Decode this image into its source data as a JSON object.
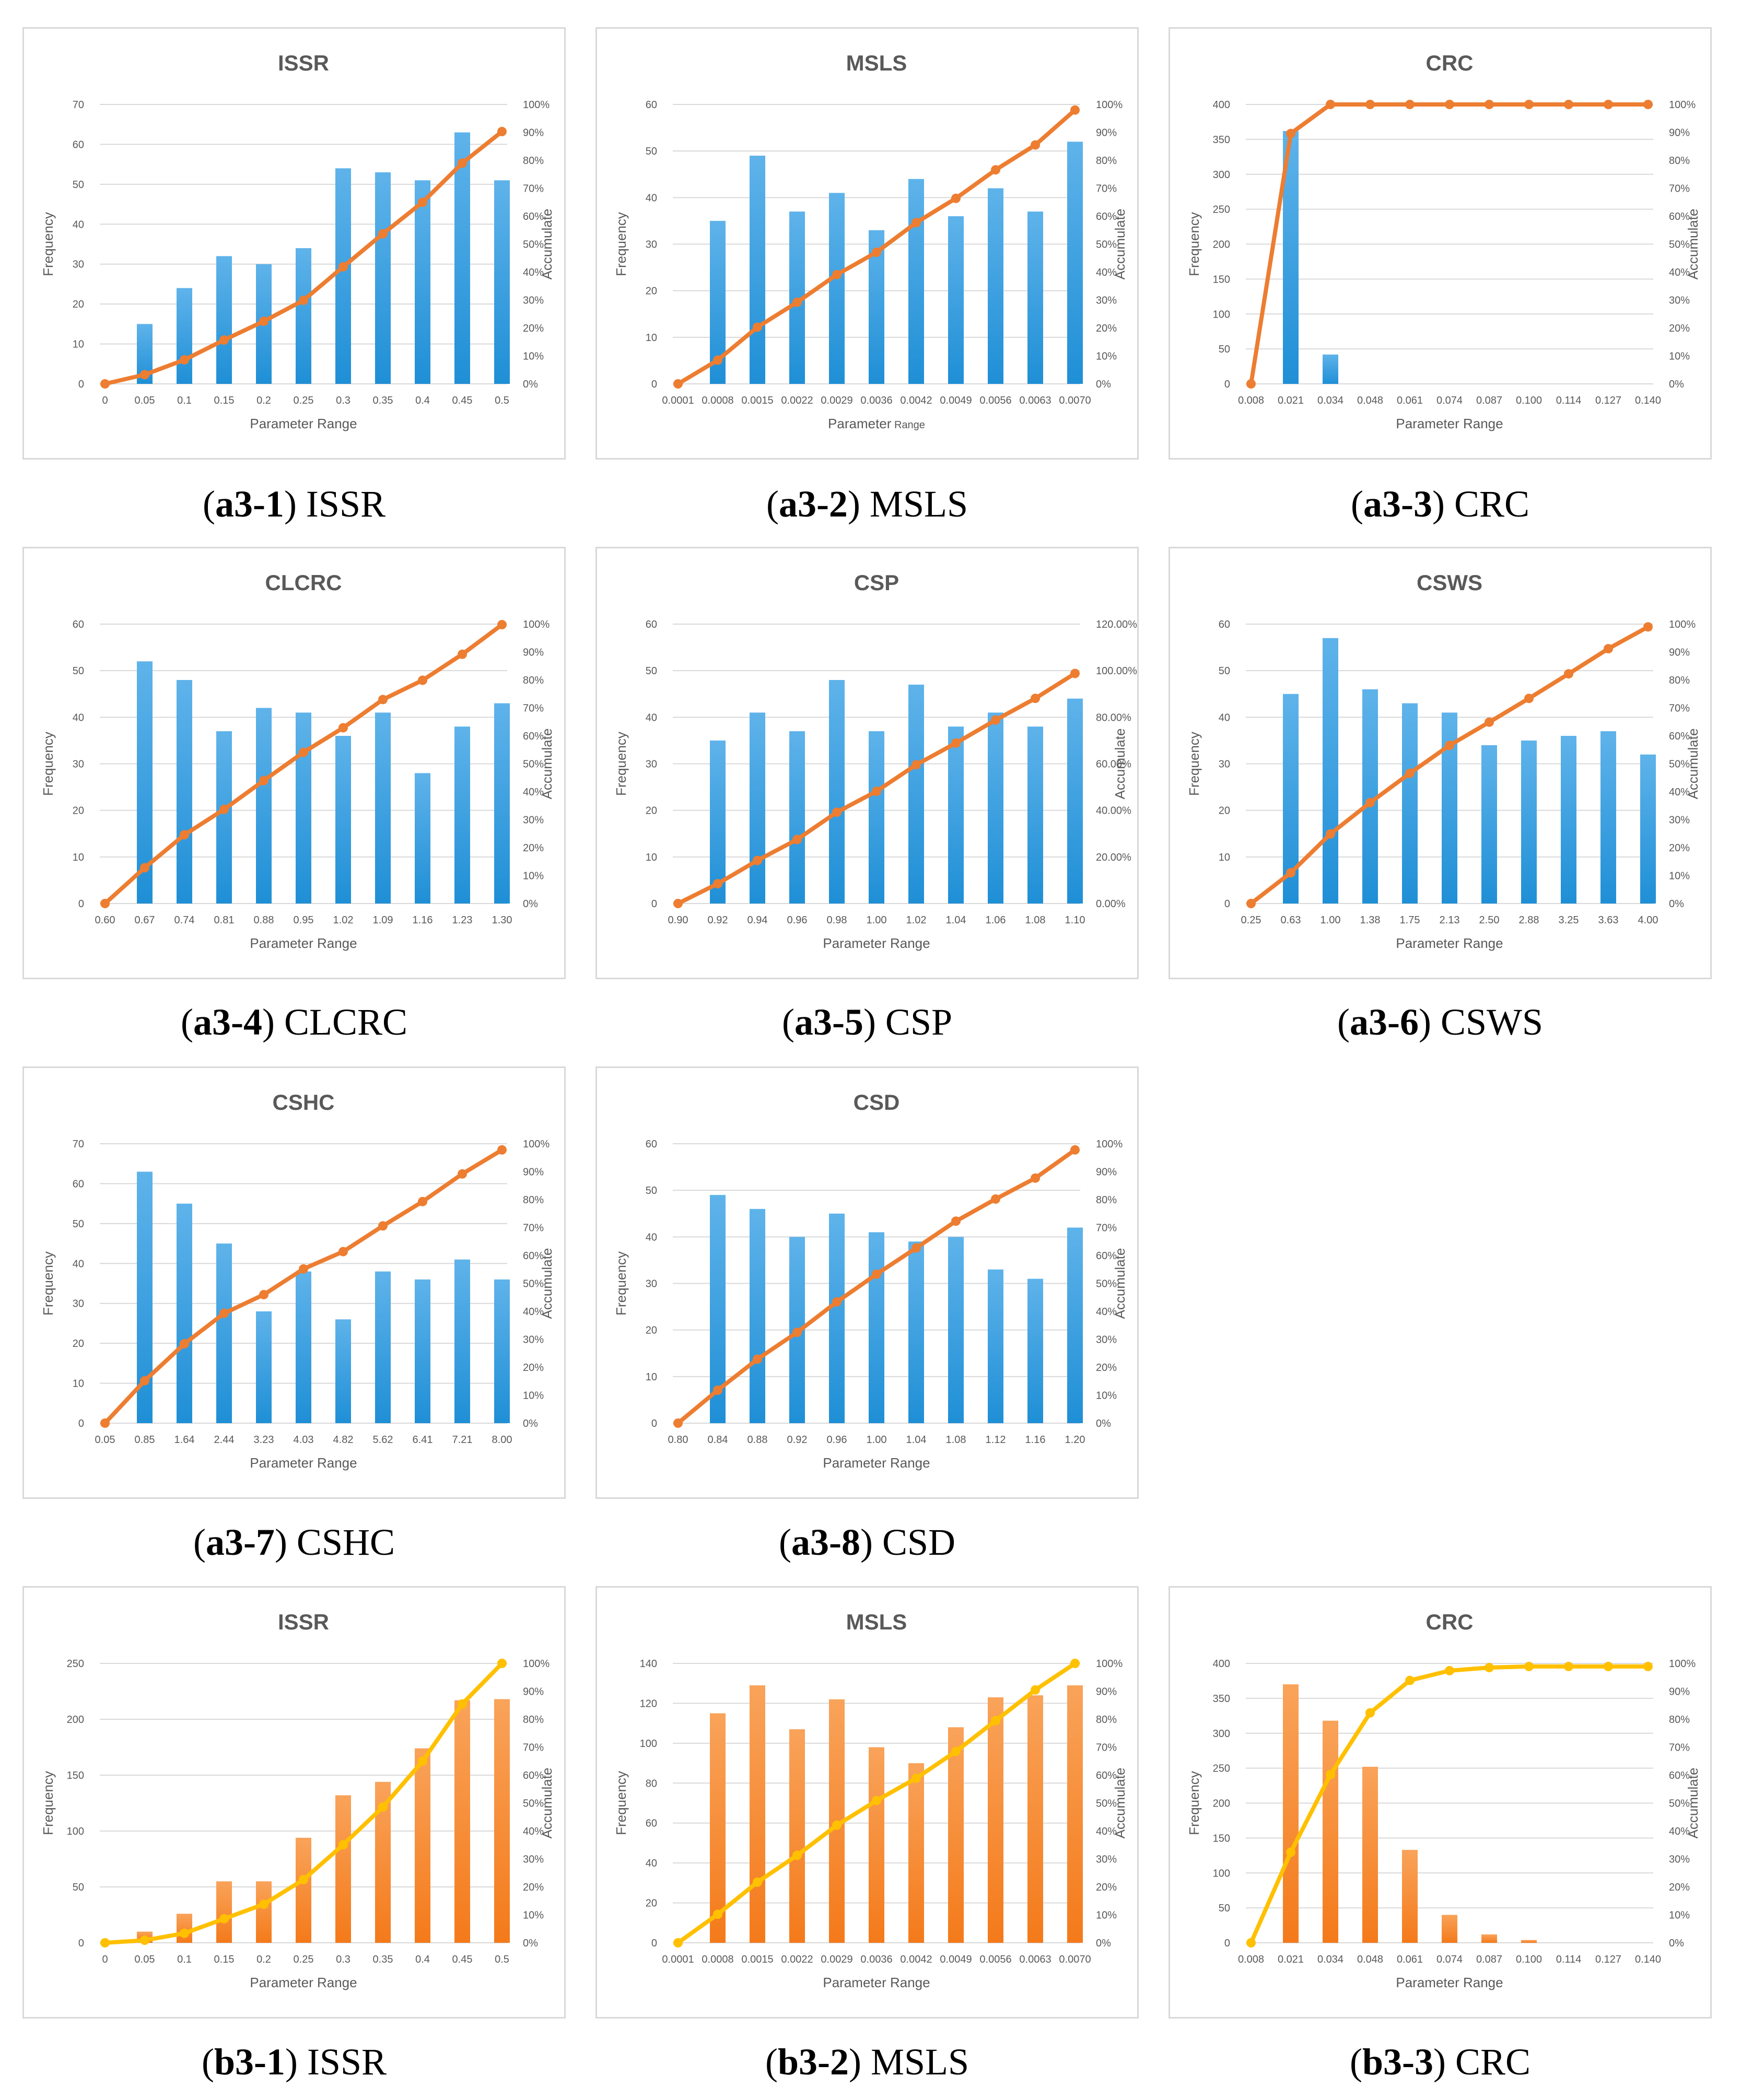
{
  "captions": [
    {
      "label": "a3-1",
      "name": "ISSR"
    },
    {
      "label": "a3-2",
      "name": "MSLS"
    },
    {
      "label": "a3-3",
      "name": "CRC"
    },
    {
      "label": "a3-4",
      "name": "CLCRC"
    },
    {
      "label": "a3-5",
      "name": "CSP"
    },
    {
      "label": "a3-6",
      "name": "CSWS"
    },
    {
      "label": "a3-7",
      "name": "CSHC"
    },
    {
      "label": "a3-8",
      "name": "CSD"
    },
    {
      "label": "b3-1",
      "name": "ISSR"
    },
    {
      "label": "b3-2",
      "name": "MSLS"
    },
    {
      "label": "b3-3",
      "name": "CRC"
    }
  ],
  "colors": {
    "blue_bar": "#1f8fd6",
    "blue_bar_top": "#5fb3ea",
    "orange_line": "#ed7d31",
    "orange_bar": "#f47a1a",
    "orange_bar_top": "#f9a35a",
    "yellow_line": "#ffc000",
    "gridline": "#d9d9d9",
    "axis_text": "#595959"
  },
  "chart_data": [
    {
      "type": "bar+line",
      "title": "ISSR",
      "xlabel": "Parameter Range",
      "ylabel": "Frequency",
      "y2label": "Accumulate",
      "categories": [
        "0",
        "0.05",
        "0.1",
        "0.15",
        "0.2",
        "0.25",
        "0.3",
        "0.35",
        "0.4",
        "0.45",
        "0.5"
      ],
      "series": [
        {
          "name": "Frequency",
          "kind": "bar",
          "values": [
            0,
            15,
            24,
            32,
            30,
            34,
            54,
            53,
            51,
            63,
            51
          ]
        },
        {
          "name": "Accumulate",
          "kind": "line",
          "values": [
            0,
            3.3,
            8.6,
            15.7,
            22.4,
            29.9,
            41.9,
            53.7,
            65.0,
            79.0,
            90.3
          ]
        }
      ],
      "ylim": [
        0,
        70
      ],
      "yticks": [
        "0",
        "10",
        "20",
        "30",
        "40",
        "50",
        "60",
        "70"
      ],
      "y2ticks": [
        "0%",
        "10%",
        "20%",
        "30%",
        "40%",
        "50%",
        "60%",
        "70%",
        "80%",
        "90%",
        "100%"
      ],
      "scheme": "blue"
    },
    {
      "type": "bar+line",
      "title": "MSLS",
      "xlabel": "Parameter",
      "xlabel_small": "Range",
      "ylabel": "Frequency",
      "y2label": "Accumulate",
      "categories": [
        "0.0001",
        "0.0008",
        "0.0015",
        "0.0022",
        "0.0029",
        "0.0036",
        "0.0042",
        "0.0049",
        "0.0056",
        "0.0063",
        "0.0070"
      ],
      "series": [
        {
          "name": "Frequency",
          "kind": "bar",
          "values": [
            0,
            35,
            49,
            37,
            41,
            33,
            44,
            36,
            42,
            37,
            52
          ]
        },
        {
          "name": "Accumulate",
          "kind": "line",
          "values": [
            0,
            8.5,
            20.3,
            29.2,
            39.1,
            47.1,
            57.7,
            66.4,
            76.6,
            85.5,
            98.0
          ]
        }
      ],
      "ylim": [
        0,
        60
      ],
      "yticks": [
        "0",
        "10",
        "20",
        "30",
        "40",
        "50",
        "60"
      ],
      "y2ticks": [
        "0%",
        "10%",
        "20%",
        "30%",
        "40%",
        "50%",
        "60%",
        "70%",
        "80%",
        "90%",
        "100%"
      ],
      "scheme": "blue"
    },
    {
      "type": "bar+line",
      "title": "CRC",
      "xlabel": "Parameter Range",
      "ylabel": "Frequency",
      "y2label": "Accumulate",
      "categories": [
        "0.008",
        "0.021",
        "0.034",
        "0.048",
        "0.061",
        "0.074",
        "0.087",
        "0.100",
        "0.114",
        "0.127",
        "0.140"
      ],
      "series": [
        {
          "name": "Frequency",
          "kind": "bar",
          "values": [
            0,
            362,
            42,
            0,
            0,
            0,
            0,
            0,
            0,
            0,
            0
          ]
        },
        {
          "name": "Accumulate",
          "kind": "line",
          "values": [
            0,
            89.6,
            100,
            100,
            100,
            100,
            100,
            100,
            100,
            100,
            100
          ]
        }
      ],
      "ylim": [
        0,
        400
      ],
      "yticks": [
        "0",
        "50",
        "100",
        "150",
        "200",
        "250",
        "300",
        "350",
        "400"
      ],
      "y2ticks": [
        "0%",
        "10%",
        "20%",
        "30%",
        "40%",
        "50%",
        "60%",
        "70%",
        "80%",
        "90%",
        "100%"
      ],
      "scheme": "blue"
    },
    {
      "type": "bar+line",
      "title": "CLCRC",
      "xlabel": "Parameter Range",
      "ylabel": "Frequency",
      "y2label": "Accumulate",
      "categories": [
        "0.60",
        "0.67",
        "0.74",
        "0.81",
        "0.88",
        "0.95",
        "1.02",
        "1.09",
        "1.16",
        "1.23",
        "1.30"
      ],
      "series": [
        {
          "name": "Frequency",
          "kind": "bar",
          "values": [
            0,
            52,
            48,
            37,
            42,
            41,
            36,
            41,
            28,
            38,
            43
          ]
        },
        {
          "name": "Accumulate",
          "kind": "line",
          "values": [
            0,
            12.8,
            24.6,
            33.7,
            44.0,
            54.1,
            62.9,
            73.0,
            79.9,
            89.2,
            99.8
          ]
        }
      ],
      "ylim": [
        0,
        60
      ],
      "yticks": [
        "0",
        "10",
        "20",
        "30",
        "40",
        "50",
        "60"
      ],
      "y2ticks": [
        "0%",
        "10%",
        "20%",
        "30%",
        "40%",
        "50%",
        "60%",
        "70%",
        "80%",
        "90%",
        "100%"
      ],
      "scheme": "blue"
    },
    {
      "type": "bar+line",
      "title": "CSP",
      "xlabel": "Parameter Range",
      "ylabel": "Frequency",
      "y2label": "Accumulate",
      "categories": [
        "0.90",
        "0.92",
        "0.94",
        "0.96",
        "0.98",
        "1.00",
        "1.02",
        "1.04",
        "1.06",
        "1.08",
        "1.10"
      ],
      "series": [
        {
          "name": "Frequency",
          "kind": "bar",
          "values": [
            0,
            35,
            41,
            37,
            48,
            37,
            47,
            38,
            41,
            38,
            44
          ]
        },
        {
          "name": "Accumulate",
          "kind": "line",
          "values": [
            0,
            8.5,
            18.5,
            27.5,
            39.2,
            48.2,
            59.6,
            68.9,
            78.8,
            88.1,
            98.8
          ]
        }
      ],
      "ylim": [
        0,
        60
      ],
      "yticks": [
        "0",
        "10",
        "20",
        "30",
        "40",
        "50",
        "60"
      ],
      "y2ticks": [
        "0.00%",
        "20.00%",
        "40.00%",
        "60.00%",
        "80.00%",
        "100.00%",
        "120.00%"
      ],
      "y2max": 120,
      "scheme": "blue"
    },
    {
      "type": "bar+line",
      "title": "CSWS",
      "xlabel": "Parameter Range",
      "ylabel": "Frequency",
      "y2label": "Accumulate",
      "categories": [
        "0.25",
        "0.63",
        "1.00",
        "1.38",
        "1.75",
        "2.13",
        "2.50",
        "2.88",
        "3.25",
        "3.63",
        "4.00"
      ],
      "series": [
        {
          "name": "Frequency",
          "kind": "bar",
          "values": [
            0,
            45,
            57,
            46,
            43,
            41,
            34,
            35,
            36,
            37,
            32
          ]
        },
        {
          "name": "Accumulate",
          "kind": "line",
          "values": [
            0,
            11.0,
            24.9,
            36.1,
            46.6,
            56.6,
            64.9,
            73.4,
            82.2,
            91.2,
            99.0
          ]
        }
      ],
      "ylim": [
        0,
        60
      ],
      "yticks": [
        "0",
        "10",
        "20",
        "30",
        "40",
        "50",
        "60"
      ],
      "y2ticks": [
        "0%",
        "10%",
        "20%",
        "30%",
        "40%",
        "50%",
        "60%",
        "70%",
        "80%",
        "90%",
        "100%"
      ],
      "scheme": "blue"
    },
    {
      "type": "bar+line",
      "title": "CSHC",
      "xlabel": "Parameter Range",
      "ylabel": "Frequency",
      "y2label": "Accumulate",
      "categories": [
        "0.05",
        "0.85",
        "1.64",
        "2.44",
        "3.23",
        "4.03",
        "4.82",
        "5.62",
        "6.41",
        "7.21",
        "8.00"
      ],
      "series": [
        {
          "name": "Frequency",
          "kind": "bar",
          "values": [
            0,
            63,
            55,
            45,
            28,
            38,
            26,
            38,
            36,
            41,
            36
          ]
        },
        {
          "name": "Accumulate",
          "kind": "line",
          "values": [
            0,
            15.2,
            28.4,
            39.3,
            46.0,
            55.2,
            61.4,
            70.6,
            79.3,
            89.2,
            97.8
          ]
        }
      ],
      "ylim": [
        0,
        70
      ],
      "yticks": [
        "0",
        "10",
        "20",
        "30",
        "40",
        "50",
        "60",
        "70"
      ],
      "y2ticks": [
        "0%",
        "10%",
        "20%",
        "30%",
        "40%",
        "50%",
        "60%",
        "70%",
        "80%",
        "90%",
        "100%"
      ],
      "scheme": "blue"
    },
    {
      "type": "bar+line",
      "title": "CSD",
      "xlabel": "Parameter Range",
      "ylabel": "Frequency",
      "y2label": "Accumulate",
      "categories": [
        "0.80",
        "0.84",
        "0.88",
        "0.92",
        "0.96",
        "1.00",
        "1.04",
        "1.08",
        "1.12",
        "1.16",
        "1.20"
      ],
      "series": [
        {
          "name": "Frequency",
          "kind": "bar",
          "values": [
            0,
            49,
            46,
            40,
            45,
            41,
            39,
            40,
            33,
            31,
            42
          ]
        },
        {
          "name": "Accumulate",
          "kind": "line",
          "values": [
            0,
            11.8,
            22.9,
            32.5,
            43.4,
            53.3,
            62.7,
            72.3,
            80.2,
            87.7,
            97.8
          ]
        }
      ],
      "ylim": [
        0,
        60
      ],
      "yticks": [
        "0",
        "10",
        "20",
        "30",
        "40",
        "50",
        "60"
      ],
      "y2ticks": [
        "0%",
        "10%",
        "20%",
        "30%",
        "40%",
        "50%",
        "60%",
        "70%",
        "80%",
        "90%",
        "100%"
      ],
      "scheme": "blue"
    },
    {
      "type": "bar+line",
      "title": "ISSR",
      "xlabel": "Parameter Range",
      "ylabel": "Frequency",
      "y2label": "Accumulate",
      "categories": [
        "0",
        "0.05",
        "0.1",
        "0.15",
        "0.2",
        "0.25",
        "0.3",
        "0.35",
        "0.4",
        "0.45",
        "0.5"
      ],
      "series": [
        {
          "name": "Frequency",
          "kind": "bar",
          "values": [
            0,
            10,
            26,
            55,
            55,
            94,
            132,
            144,
            174,
            217,
            218
          ]
        },
        {
          "name": "Accumulate",
          "kind": "line",
          "values": [
            0,
            0.9,
            3.4,
            8.6,
            13.8,
            22.6,
            35.1,
            48.6,
            65.0,
            85.5,
            100
          ]
        }
      ],
      "ylim": [
        0,
        250
      ],
      "yticks": [
        "0",
        "50",
        "100",
        "150",
        "200",
        "250"
      ],
      "y2ticks": [
        "0%",
        "10%",
        "20%",
        "30%",
        "40%",
        "50%",
        "60%",
        "70%",
        "80%",
        "90%",
        "100%"
      ],
      "scheme": "orange"
    },
    {
      "type": "bar+line",
      "title": "MSLS",
      "xlabel": "Parameter Range",
      "ylabel": "Frequency",
      "y2label": "Accumulate",
      "categories": [
        "0.0001",
        "0.0008",
        "0.0015",
        "0.0022",
        "0.0029",
        "0.0036",
        "0.0042",
        "0.0049",
        "0.0056",
        "0.0063",
        "0.0070"
      ],
      "series": [
        {
          "name": "Frequency",
          "kind": "bar",
          "values": [
            0,
            115,
            129,
            107,
            122,
            98,
            90,
            108,
            123,
            124,
            129
          ]
        },
        {
          "name": "Accumulate",
          "kind": "line",
          "values": [
            0,
            10.2,
            21.7,
            31.3,
            42.1,
            50.9,
            58.9,
            68.5,
            79.5,
            90.5,
            100
          ]
        }
      ],
      "ylim": [
        0,
        140
      ],
      "yticks": [
        "0",
        "20",
        "40",
        "60",
        "80",
        "100",
        "120",
        "140"
      ],
      "y2ticks": [
        "0%",
        "10%",
        "20%",
        "30%",
        "40%",
        "50%",
        "60%",
        "70%",
        "80%",
        "90%",
        "100%"
      ],
      "scheme": "orange"
    },
    {
      "type": "bar+line",
      "title": "CRC",
      "xlabel": "Parameter Range",
      "ylabel": "Frequency",
      "y2label": "Accumulate",
      "categories": [
        "0.008",
        "0.021",
        "0.034",
        "0.048",
        "0.061",
        "0.074",
        "0.087",
        "0.100",
        "0.114",
        "0.127",
        "0.140"
      ],
      "series": [
        {
          "name": "Frequency",
          "kind": "bar",
          "values": [
            0,
            370,
            318,
            252,
            133,
            40,
            12,
            4,
            0,
            0,
            0
          ]
        },
        {
          "name": "Accumulate",
          "kind": "line",
          "values": [
            0,
            32.4,
            60.2,
            82.3,
            93.9,
            97.4,
            98.5,
            98.9,
            98.9,
            98.9,
            98.9
          ]
        }
      ],
      "ylim": [
        0,
        400
      ],
      "yticks": [
        "0",
        "50",
        "100",
        "150",
        "200",
        "250",
        "300",
        "350",
        "400"
      ],
      "y2ticks": [
        "0%",
        "10%",
        "20%",
        "30%",
        "40%",
        "50%",
        "60%",
        "70%",
        "80%",
        "90%",
        "100%"
      ],
      "scheme": "orange"
    }
  ]
}
